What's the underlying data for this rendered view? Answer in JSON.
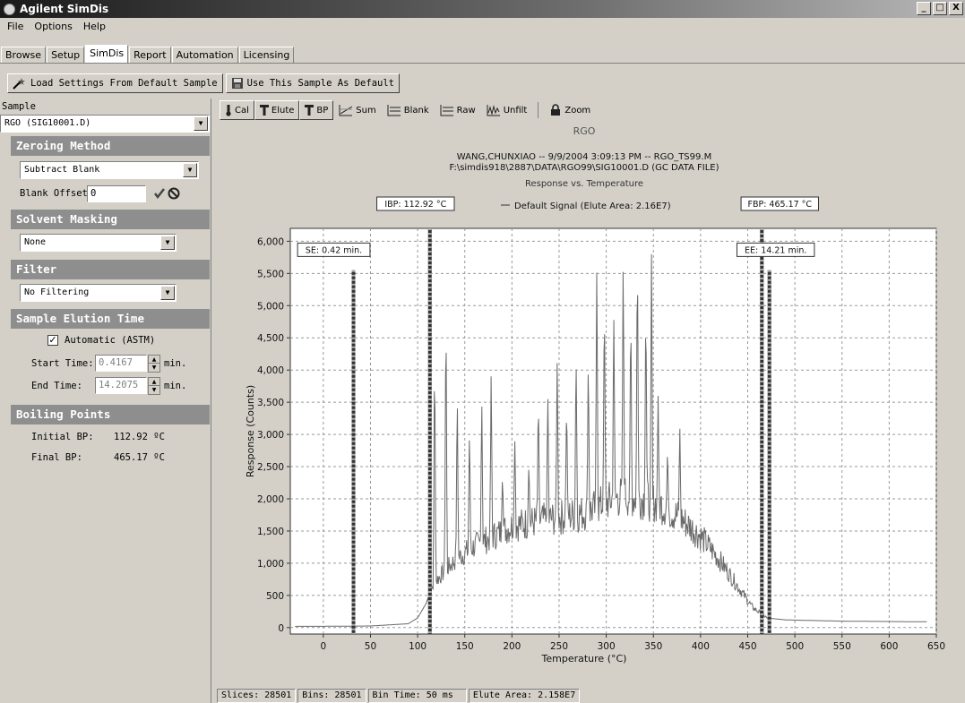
{
  "window": {
    "title": "Agilent SimDis"
  },
  "menu": [
    "File",
    "Options",
    "Help"
  ],
  "tabs": [
    {
      "label": "Browse",
      "active": false
    },
    {
      "label": "Setup",
      "active": false
    },
    {
      "label": "SimDis",
      "active": true
    },
    {
      "label": "Report",
      "active": false
    },
    {
      "label": "Automation",
      "active": false
    },
    {
      "label": "Licensing",
      "active": false
    }
  ],
  "actions": {
    "load_settings": "Load Settings From Default Sample",
    "use_default": "Use This Sample As Default"
  },
  "sample": {
    "label": "Sample",
    "value": "RGO (SIG10001.D)"
  },
  "zeroing": {
    "header": "Zeroing Method",
    "method": "Subtract Blank",
    "offset_label": "Blank Offset",
    "offset_value": "0"
  },
  "solvent": {
    "header": "Solvent Masking",
    "value": "None"
  },
  "filter": {
    "header": "Filter",
    "value": "No Filtering"
  },
  "elution": {
    "header": "Sample Elution Time",
    "automatic_label": "Automatic (ASTM)",
    "automatic_checked": true,
    "start_label": "Start Time:",
    "start_value": "0.4167",
    "end_label": "End Time:",
    "end_value": "14.2075",
    "unit": "min."
  },
  "boiling": {
    "header": "Boiling Points",
    "initial_label": "Initial BP:",
    "initial_value": "112.92 ºC",
    "final_label": "Final BP:",
    "final_value": "465.17 ºC"
  },
  "chart_toolbar": [
    "Cal",
    "Elute",
    "BP",
    "Sum",
    "Blank",
    "Raw",
    "Unfilt",
    "Zoom"
  ],
  "status": {
    "slices": "Slices: 28501",
    "bins": "Bins: 28501",
    "bin_time": "Bin Time: 50 ms",
    "elute_area": "Elute Area: 2.158E7"
  },
  "chart_data": {
    "type": "line",
    "title": "RGO",
    "subtitle1": "WANG,CHUNXIAO -- 9/9/2004 3:09:13 PM -- RGO_TS99.M",
    "subtitle2": "F:\\simdis918\\2887\\DATA\\RGO99\\SIG10001.D (GC DATA FILE)",
    "subtitle3": "Response vs. Temperature",
    "legend": "Default Signal (Elute Area: 2.16E7)",
    "xlabel": "Temperature (°C)",
    "ylabel": "Response (Counts)",
    "xlim": [
      -35,
      650
    ],
    "ylim": [
      -100,
      6200
    ],
    "xticks": [
      0,
      50,
      100,
      150,
      200,
      250,
      300,
      350,
      400,
      450,
      500,
      550,
      600,
      650
    ],
    "yticks": [
      0,
      500,
      1000,
      1500,
      2000,
      2500,
      3000,
      3500,
      4000,
      4500,
      5000,
      5500,
      6000
    ],
    "ytick_labels": [
      "0",
      "500",
      "1,000",
      "1,500",
      "2,000",
      "2,500",
      "3,000",
      "3,500",
      "4,000",
      "4,500",
      "5,000",
      "5,500",
      "6,000"
    ],
    "grid": true,
    "markers": [
      {
        "label": "SE: 0.42 min.",
        "x": 32,
        "top": 5550
      },
      {
        "label": "IBP: 112.92 °C",
        "x": 113,
        "top": 6200
      },
      {
        "label": "FBP: 465.17 °C",
        "x": 465,
        "top": 6200
      },
      {
        "label": "EE: 14.21 min.",
        "x": 473,
        "top": 5550
      }
    ],
    "envelope": [
      [
        -30,
        20
      ],
      [
        0,
        20
      ],
      [
        50,
        25
      ],
      [
        90,
        60
      ],
      [
        100,
        150
      ],
      [
        110,
        400
      ],
      [
        120,
        700
      ],
      [
        140,
        1000
      ],
      [
        160,
        1200
      ],
      [
        180,
        1350
      ],
      [
        200,
        1500
      ],
      [
        220,
        1550
      ],
      [
        240,
        1600
      ],
      [
        260,
        1650
      ],
      [
        280,
        1700
      ],
      [
        300,
        1850
      ],
      [
        320,
        1950
      ],
      [
        340,
        1900
      ],
      [
        360,
        1800
      ],
      [
        380,
        1600
      ],
      [
        400,
        1350
      ],
      [
        420,
        1000
      ],
      [
        440,
        600
      ],
      [
        455,
        300
      ],
      [
        470,
        150
      ],
      [
        490,
        120
      ],
      [
        550,
        100
      ],
      [
        640,
        90
      ]
    ],
    "peaks": [
      [
        118,
        4500
      ],
      [
        130,
        5200
      ],
      [
        142,
        3800
      ],
      [
        155,
        3200
      ],
      [
        168,
        3600
      ],
      [
        178,
        4100
      ],
      [
        190,
        2400
      ],
      [
        203,
        3000
      ],
      [
        218,
        2600
      ],
      [
        228,
        3700
      ],
      [
        238,
        3700
      ],
      [
        248,
        4300
      ],
      [
        258,
        3600
      ],
      [
        268,
        4400
      ],
      [
        281,
        4300
      ],
      [
        290,
        5800
      ],
      [
        298,
        5300
      ],
      [
        308,
        5000
      ],
      [
        318,
        5800
      ],
      [
        326,
        5100
      ],
      [
        333,
        6050
      ],
      [
        342,
        5200
      ],
      [
        348,
        5800
      ],
      [
        355,
        3600
      ],
      [
        365,
        2800
      ],
      [
        378,
        3200
      ]
    ]
  }
}
